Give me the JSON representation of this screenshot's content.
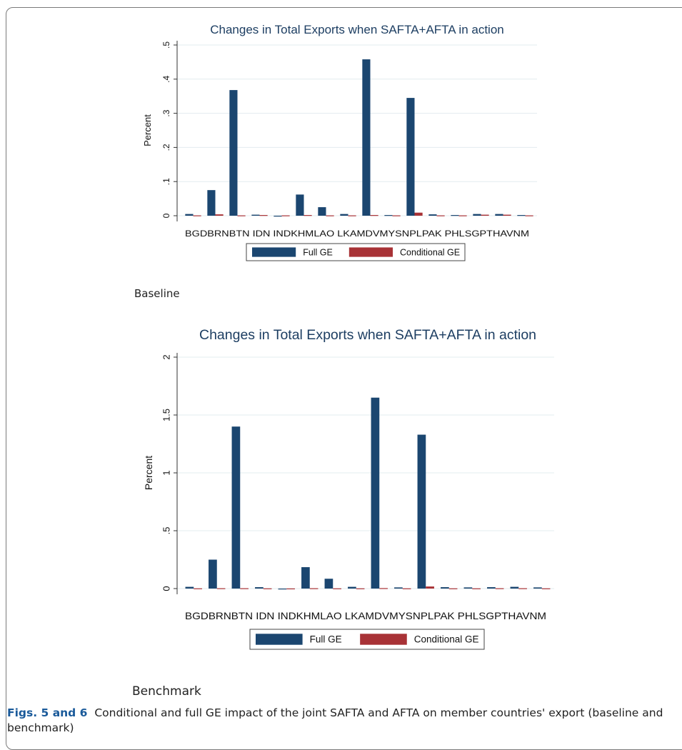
{
  "chart_data": [
    {
      "type": "bar",
      "title": "Changes in Total Exports when SAFTA+AFTA in action",
      "ylabel": "Percent",
      "categories": [
        "BGD",
        "BRN",
        "BTN",
        "IDN",
        "IND",
        "KHM",
        "LAO",
        "LKA",
        "MDV",
        "MYS",
        "NPL",
        "PAK",
        "PHL",
        "SGP",
        "THA",
        "VNM"
      ],
      "category_label_text": "BGDBRNBTN IDN INDKHMLAO LKAMDVMYSNPLPAK PHLSGPTHAVNM",
      "yticks": [
        0,
        0.1,
        0.2,
        0.3,
        0.4,
        0.5
      ],
      "ytick_labels": [
        "0",
        ".1",
        ".2",
        ".3",
        ".4",
        ".5"
      ],
      "ylim": [
        0,
        0.5
      ],
      "grid": true,
      "legend_position": "bottom",
      "series": [
        {
          "name": "Full GE",
          "color": "#1b4670",
          "values": [
            0.005,
            0.075,
            0.368,
            0.003,
            -0.002,
            0.062,
            0.025,
            0.005,
            0.458,
            0.002,
            0.345,
            0.004,
            0.002,
            0.005,
            0.005,
            0.002
          ]
        },
        {
          "name": "Conditional GE",
          "color": "#a83236",
          "values": [
            0.001,
            0.004,
            0.001,
            0.002,
            0.001,
            0.002,
            0.001,
            0.001,
            0.002,
            0.001,
            0.009,
            0.001,
            0.001,
            0.003,
            0.003,
            0.001
          ]
        }
      ]
    },
    {
      "type": "bar",
      "title": "Changes in Total Exports when SAFTA+AFTA in action",
      "ylabel": "Percent",
      "categories": [
        "BGD",
        "BRN",
        "BTN",
        "IDN",
        "IND",
        "KHM",
        "LAO",
        "LKA",
        "MDV",
        "MYS",
        "NPL",
        "PAK",
        "PHL",
        "SGP",
        "THA",
        "VNM"
      ],
      "category_label_text": "BGDBRNBTN IDN INDKHMLAO LKAMDVMYSNPLPAK PHLSGPTHAVNM",
      "yticks": [
        0,
        0.5,
        1,
        1.5,
        2
      ],
      "ytick_labels": [
        "0",
        ".5",
        "1",
        "1.5",
        "2"
      ],
      "ylim": [
        0,
        2
      ],
      "grid": true,
      "legend_position": "bottom",
      "series": [
        {
          "name": "Full GE",
          "color": "#1b4670",
          "values": [
            0.015,
            0.25,
            1.4,
            0.012,
            -0.005,
            0.185,
            0.085,
            0.015,
            1.65,
            0.01,
            1.33,
            0.012,
            0.01,
            0.012,
            0.015,
            0.01
          ]
        },
        {
          "name": "Conditional GE",
          "color": "#a83236",
          "values": [
            0.002,
            0.003,
            0.003,
            0.002,
            0.001,
            0.003,
            0.002,
            0.002,
            0.004,
            0.002,
            0.018,
            0.002,
            0.002,
            0.003,
            0.003,
            0.002
          ]
        }
      ]
    }
  ],
  "labels": {
    "baseline": "Baseline",
    "benchmark": "Benchmark"
  },
  "caption": {
    "bold": "Figs. 5 and 6",
    "text": "Conditional and full GE impact of the joint SAFTA and AFTA on member countries' export (baseline and benchmark)"
  }
}
